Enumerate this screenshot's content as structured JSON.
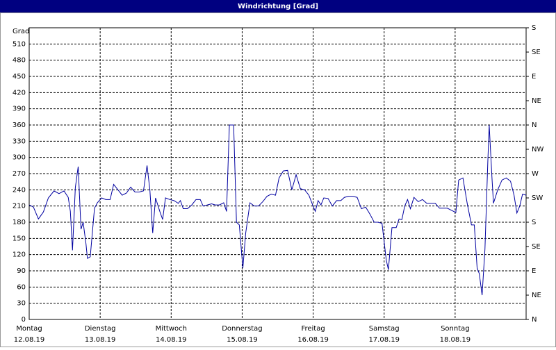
{
  "chart_data": {
    "type": "line",
    "title": "Windrichtung [Grad]",
    "y_label": "Grad",
    "x": [
      0,
      0.06,
      0.13,
      0.2,
      0.27,
      0.35,
      0.42,
      0.49,
      0.55,
      0.58,
      0.61,
      0.65,
      0.69,
      0.73,
      0.76,
      0.8,
      0.82,
      0.86,
      0.92,
      0.96,
      1.02,
      1.08,
      1.14,
      1.19,
      1.25,
      1.31,
      1.37,
      1.43,
      1.49,
      1.55,
      1.61,
      1.66,
      1.7,
      1.74,
      1.78,
      1.84,
      1.88,
      1.92,
      1.98,
      2.04,
      2.1,
      2.13,
      2.17,
      2.23,
      2.29,
      2.35,
      2.41,
      2.45,
      2.51,
      2.57,
      2.62,
      2.68,
      2.74,
      2.78,
      2.82,
      2.88,
      2.92,
      2.96,
      3.01,
      3.05,
      3.11,
      3.17,
      3.23,
      3.29,
      3.35,
      3.41,
      3.47,
      3.52,
      3.58,
      3.64,
      3.7,
      3.76,
      3.82,
      3.88,
      3.94,
      3.99,
      4.03,
      4.07,
      4.11,
      4.15,
      4.21,
      4.27,
      4.33,
      4.39,
      4.44,
      4.5,
      4.56,
      4.62,
      4.68,
      4.74,
      4.8,
      4.86,
      4.91,
      4.97,
      5.03,
      5.06,
      5.11,
      5.17,
      5.21,
      5.25,
      5.29,
      5.33,
      5.37,
      5.42,
      5.48,
      5.54,
      5.6,
      5.66,
      5.72,
      5.78,
      5.84,
      5.89,
      5.95,
      6.01,
      6.05,
      6.11,
      6.17,
      6.23,
      6.27,
      6.31,
      6.34,
      6.38,
      6.42,
      6.46,
      6.48,
      6.52,
      6.54,
      6.6,
      6.66,
      6.72,
      6.78,
      6.83,
      6.87,
      6.91,
      6.95,
      7.0
    ],
    "series": [
      {
        "color": "#0000a0",
        "values": [
          212,
          208,
          186,
          199,
          225,
          238,
          233,
          238,
          226,
          200,
          128,
          244,
          283,
          167,
          180,
          140,
          113,
          116,
          206,
          216,
          225,
          222,
          222,
          250,
          240,
          230,
          234,
          245,
          236,
          236,
          238,
          285,
          240,
          160,
          225,
          200,
          185,
          225,
          222,
          220,
          215,
          220,
          205,
          205,
          212,
          222,
          222,
          210,
          212,
          214,
          212,
          212,
          216,
          200,
          360,
          360,
          180,
          175,
          95,
          160,
          216,
          210,
          210,
          218,
          228,
          232,
          230,
          262,
          275,
          276,
          240,
          268,
          242,
          240,
          230,
          213,
          200,
          220,
          212,
          225,
          224,
          210,
          220,
          220,
          226,
          228,
          228,
          226,
          205,
          208,
          195,
          180,
          180,
          178,
          110,
          92,
          170,
          170,
          186,
          185,
          210,
          222,
          205,
          226,
          218,
          222,
          215,
          215,
          215,
          206,
          206,
          206,
          202,
          198,
          258,
          262,
          215,
          175,
          175,
          95,
          85,
          45,
          130,
          290,
          360,
          260,
          215,
          240,
          258,
          262,
          256,
          230,
          197,
          210,
          232,
          230
        ]
      }
    ],
    "xlim": [
      0,
      7
    ],
    "xticks": [
      {
        "value": 0,
        "label": "Montag",
        "date": "12.08.19"
      },
      {
        "value": 1,
        "label": "Dienstag",
        "date": "13.08.19"
      },
      {
        "value": 2,
        "label": "Mittwoch",
        "date": "14.08.19"
      },
      {
        "value": 3,
        "label": "Donnerstag",
        "date": "15.08.19"
      },
      {
        "value": 4,
        "label": "Freitag",
        "date": "16.08.19"
      },
      {
        "value": 5,
        "label": "Samstag",
        "date": "17.08.19"
      },
      {
        "value": 6,
        "label": "Sonntag",
        "date": "18.08.19"
      }
    ],
    "ylim": [
      0,
      540
    ],
    "yticks": [
      0,
      30,
      60,
      90,
      120,
      150,
      180,
      210,
      240,
      270,
      300,
      330,
      360,
      390,
      420,
      450,
      480,
      510
    ],
    "y2lim": [
      0,
      540
    ],
    "y2ticks": [
      {
        "value": 0,
        "label": "N"
      },
      {
        "value": 45,
        "label": "NE"
      },
      {
        "value": 90,
        "label": "E"
      },
      {
        "value": 135,
        "label": "SE"
      },
      {
        "value": 180,
        "label": "S"
      },
      {
        "value": 225,
        "label": "SW"
      },
      {
        "value": 270,
        "label": "W"
      },
      {
        "value": 315,
        "label": "NW"
      },
      {
        "value": 360,
        "label": "N"
      },
      {
        "value": 405,
        "label": "NE"
      },
      {
        "value": 450,
        "label": "E"
      },
      {
        "value": 495,
        "label": "SE"
      },
      {
        "value": 540,
        "label": "S"
      }
    ],
    "grid": true
  }
}
